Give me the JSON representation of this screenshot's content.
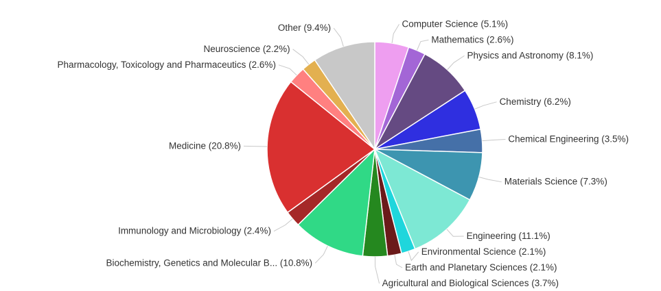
{
  "chart_data": {
    "type": "pie",
    "categories": [
      "Computer Science",
      "Mathematics",
      "Physics and Astronomy",
      "Chemistry",
      "Chemical Engineering",
      "Materials Science",
      "Engineering",
      "Environmental Science",
      "Earth and Planetary Sciences",
      "Agricultural and Biological Sciences",
      "Biochemistry, Genetics and Molecular B...",
      "Immunology and Microbiology",
      "Medicine",
      "Pharmacology, Toxicology and Pharmaceutics",
      "Neuroscience",
      "Other"
    ],
    "values": [
      5.1,
      2.6,
      8.1,
      6.2,
      3.5,
      7.3,
      11.1,
      2.1,
      2.1,
      3.7,
      10.8,
      2.4,
      20.8,
      2.6,
      2.2,
      9.4
    ],
    "value_labels": [
      "(5.1%)",
      "(2.6%)",
      "(8.1%)",
      "(6.2%)",
      "(3.5%)",
      "(7.3%)",
      "(11.1%)",
      "(2.1%)",
      "(2.1%)",
      "(3.7%)",
      "(10.8%)",
      "(2.4%)",
      "(20.8%)",
      "(2.6%)",
      "(2.2%)",
      "(9.4%)"
    ],
    "colors": [
      "#ee9ef0",
      "#a366d6",
      "#654a82",
      "#2f2fe0",
      "#4570a8",
      "#3d95b0",
      "#7de8d4",
      "#1fd6dc",
      "#6b1a1a",
      "#25881f",
      "#30d986",
      "#a52828",
      "#d93030",
      "#ff8080",
      "#e3b050",
      "#c8c8c8"
    ]
  }
}
